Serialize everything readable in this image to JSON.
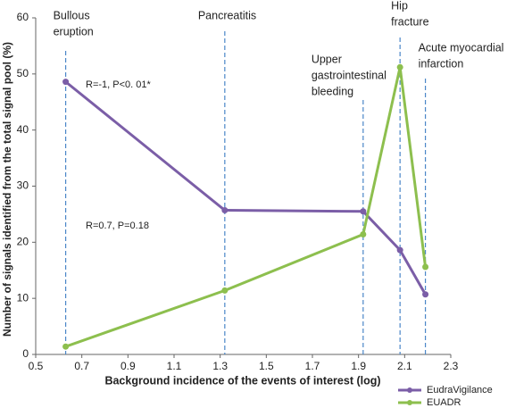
{
  "chart_data": {
    "type": "line",
    "xlabel": "Background incidence of the events of interest (log)",
    "ylabel": "Number of signals identified from the total signal pool (%)",
    "x": [
      0.63,
      1.32,
      1.92,
      2.08,
      2.19
    ],
    "series": [
      {
        "name": "EudraVigilance",
        "color": "#7b5ea7",
        "values": [
          48.6,
          25.7,
          25.5,
          18.6,
          10.7
        ]
      },
      {
        "name": "EUADR",
        "color": "#8dbf4e",
        "values": [
          1.4,
          11.4,
          21.4,
          51.2,
          15.6
        ]
      }
    ],
    "events": [
      {
        "label": [
          "Bullous",
          "eruption"
        ],
        "x": 0.63
      },
      {
        "label": [
          "Pancreatitis"
        ],
        "x": 1.32
      },
      {
        "label": [
          "Upper",
          "gastrointestinal",
          "bleeding"
        ],
        "x": 1.92
      },
      {
        "label": [
          "Hip",
          "fracture"
        ],
        "x": 2.08
      },
      {
        "label": [
          "Acute myocardial",
          "infarction"
        ],
        "x": 2.19
      }
    ],
    "annotations": [
      "R=-1, P<0. 01*",
      "R=0.7, P=0.18"
    ],
    "xlim": [
      0.5,
      2.3
    ],
    "xticks": [
      0.5,
      0.7,
      0.9,
      1.1,
      1.3,
      1.5,
      1.7,
      1.9,
      2.1,
      2.3
    ],
    "ylim": [
      0,
      60
    ],
    "yticks": [
      0,
      10,
      20,
      30,
      40,
      50,
      60
    ],
    "legend": "bottom-right"
  }
}
